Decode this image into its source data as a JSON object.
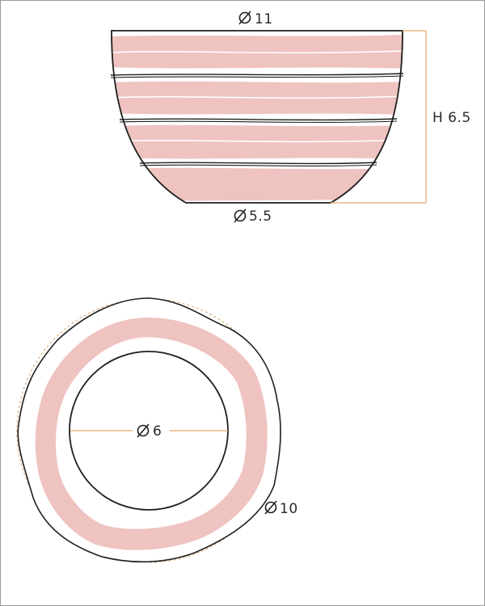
{
  "dimensions": {
    "top_diameter": "11",
    "base_diameter": "5.5",
    "height": "H 6.5",
    "inner_diameter": "6",
    "outer_diameter": "10"
  },
  "colors": {
    "outline": "#1e1e1e",
    "stripe": "#efc3c0",
    "dimension_line": "#e8a76a",
    "dashed_circle": "#d9a06a"
  },
  "icons": {
    "diameter_symbol": "diameter-icon"
  }
}
